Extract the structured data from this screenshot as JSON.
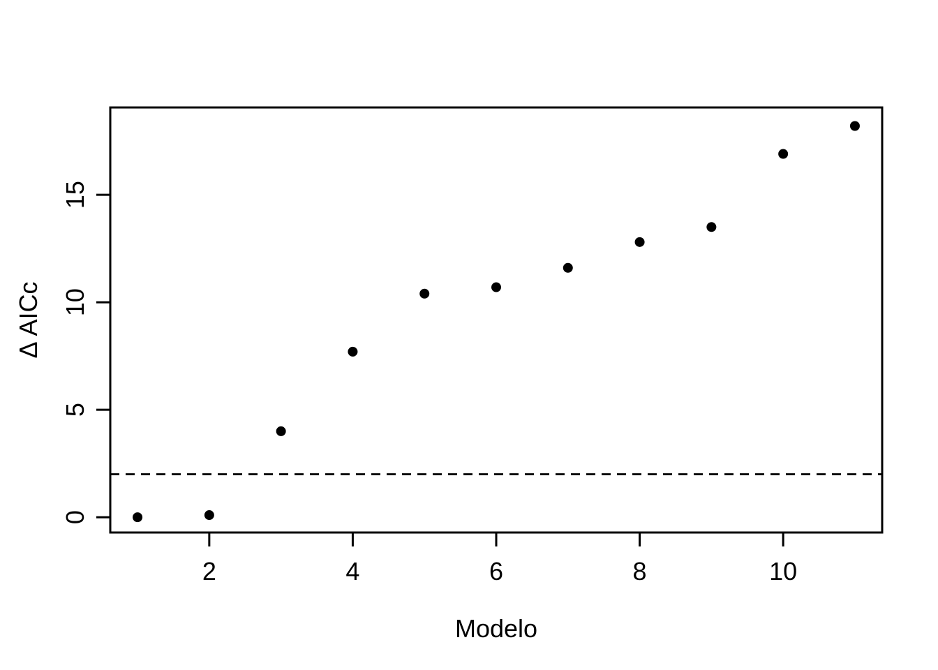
{
  "figure": {
    "background_color": "#ffffff",
    "foreground_color": "#000000"
  },
  "chart_data": {
    "type": "scatter",
    "title": "",
    "xlabel": "Modelo",
    "ylabel": "Δ AICc",
    "x": [
      1,
      2,
      3,
      4,
      5,
      6,
      7,
      8,
      9,
      10,
      11
    ],
    "values": [
      0.0,
      0.1,
      4.0,
      7.7,
      10.4,
      10.7,
      11.6,
      12.8,
      13.5,
      16.9,
      18.2
    ],
    "xticks": [
      2,
      4,
      6,
      8,
      10
    ],
    "yticks": [
      0,
      5,
      10,
      15
    ],
    "xtick_labels": [
      "2",
      "4",
      "6",
      "8",
      "10"
    ],
    "ytick_labels": [
      "0",
      "5",
      "10",
      "15"
    ],
    "xlim": [
      0.62,
      11.38
    ],
    "ylim": [
      -0.71,
      19.06
    ],
    "reference_line": {
      "value": 2,
      "orientation": "horizontal",
      "style": "dashed",
      "color": "#000000"
    },
    "point_style": {
      "shape": "circle",
      "fill": "#000000",
      "radius_px": 7
    },
    "grid": false,
    "legend": false,
    "frame": "full-box"
  }
}
